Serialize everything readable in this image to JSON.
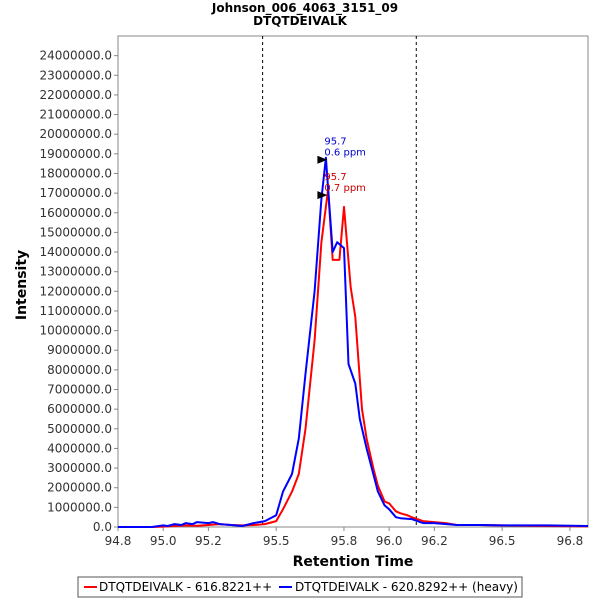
{
  "chart_data": {
    "type": "line",
    "title": "Johnson_006_4063_3151_09",
    "subtitle": "DTQTDEIVALK",
    "xlabel": "Retention Time",
    "ylabel": "Intensity",
    "xlim": [
      94.8,
      96.88
    ],
    "ylim": [
      0,
      25000000
    ],
    "xticks": [
      94.8,
      95.0,
      95.2,
      95.5,
      95.8,
      96.0,
      96.2,
      96.5,
      96.8
    ],
    "xtick_labels": [
      "94.8",
      "95.0",
      "95.2",
      "95.5",
      "95.8",
      "96.0",
      "96.2",
      "96.5",
      "96.8"
    ],
    "yticks": [
      0,
      1000000,
      2000000,
      3000000,
      4000000,
      5000000,
      6000000,
      7000000,
      8000000,
      9000000,
      10000000,
      11000000,
      12000000,
      13000000,
      14000000,
      15000000,
      16000000,
      17000000,
      18000000,
      19000000,
      20000000,
      21000000,
      22000000,
      23000000,
      24000000
    ],
    "ytick_labels": [
      "0.0",
      "1000000.0",
      "2000000.0",
      "3000000.0",
      "4000000.0",
      "5000000.0",
      "6000000.0",
      "7000000.0",
      "8000000.0",
      "9000000.0",
      "10000000.0",
      "11000000.0",
      "12000000.0",
      "13000000.0",
      "14000000.0",
      "15000000.0",
      "16000000.0",
      "17000000.0",
      "18000000.0",
      "19000000.0",
      "20000000.0",
      "21000000.0",
      "22000000.0",
      "23000000.0",
      "24000000.0"
    ],
    "vlines": [
      95.44,
      96.12
    ],
    "grid": false,
    "legend_position": "bottom",
    "series": [
      {
        "name": "DTQTDEIVALK - 616.8221++",
        "color": "#ff0000",
        "x": [
          94.8,
          94.95,
          95.0,
          95.05,
          95.1,
          95.15,
          95.2,
          95.25,
          95.3,
          95.35,
          95.4,
          95.45,
          95.5,
          95.53,
          95.57,
          95.6,
          95.63,
          95.67,
          95.7,
          95.73,
          95.75,
          95.78,
          95.8,
          95.83,
          95.85,
          95.88,
          95.9,
          95.93,
          95.95,
          95.98,
          96.0,
          96.03,
          96.05,
          96.08,
          96.1,
          96.15,
          96.2,
          96.25,
          96.3,
          96.4,
          96.5,
          96.6,
          96.7,
          96.88
        ],
        "values": [
          0,
          0,
          20000,
          50000,
          80000,
          60000,
          100000,
          150000,
          100000,
          80000,
          100000,
          150000,
          300000,
          900000,
          1800000,
          2700000,
          5000000,
          9500000,
          14500000,
          17200000,
          13600000,
          13600000,
          16300000,
          12200000,
          10700000,
          6000000,
          4500000,
          3000000,
          2100000,
          1300000,
          1200000,
          800000,
          700000,
          600000,
          500000,
          300000,
          250000,
          200000,
          100000,
          100000,
          80000,
          60000,
          50000,
          30000
        ]
      },
      {
        "name": "DTQTDEIVALK - 620.8292++ (heavy)",
        "color": "#0000ff",
        "x": [
          94.8,
          94.95,
          95.0,
          95.02,
          95.05,
          95.08,
          95.1,
          95.13,
          95.15,
          95.2,
          95.22,
          95.25,
          95.3,
          95.35,
          95.4,
          95.45,
          95.5,
          95.53,
          95.57,
          95.6,
          95.63,
          95.67,
          95.7,
          95.72,
          95.75,
          95.77,
          95.8,
          95.82,
          95.85,
          95.87,
          95.9,
          95.93,
          95.95,
          95.98,
          96.0,
          96.03,
          96.05,
          96.1,
          96.15,
          96.2,
          96.3,
          96.4,
          96.5,
          96.6,
          96.7,
          96.88
        ],
        "values": [
          0,
          0,
          80000,
          50000,
          150000,
          100000,
          200000,
          150000,
          250000,
          200000,
          250000,
          150000,
          100000,
          50000,
          200000,
          300000,
          600000,
          1800000,
          2700000,
          4500000,
          7800000,
          12000000,
          16700000,
          18800000,
          14000000,
          14500000,
          14200000,
          8300000,
          7300000,
          5500000,
          4000000,
          2700000,
          1800000,
          1100000,
          900000,
          500000,
          450000,
          400000,
          200000,
          200000,
          100000,
          100000,
          80000,
          80000,
          80000,
          50000
        ]
      }
    ],
    "annotations": [
      {
        "series": 1,
        "x": 95.74,
        "y": 18700000,
        "rt": "95.7",
        "ppm": "0.6 ppm",
        "color": "#0000cc"
      },
      {
        "series": 0,
        "x": 95.74,
        "y": 16900000,
        "rt": "95.7",
        "ppm": "0.7 ppm",
        "color": "#cc0000"
      }
    ]
  }
}
